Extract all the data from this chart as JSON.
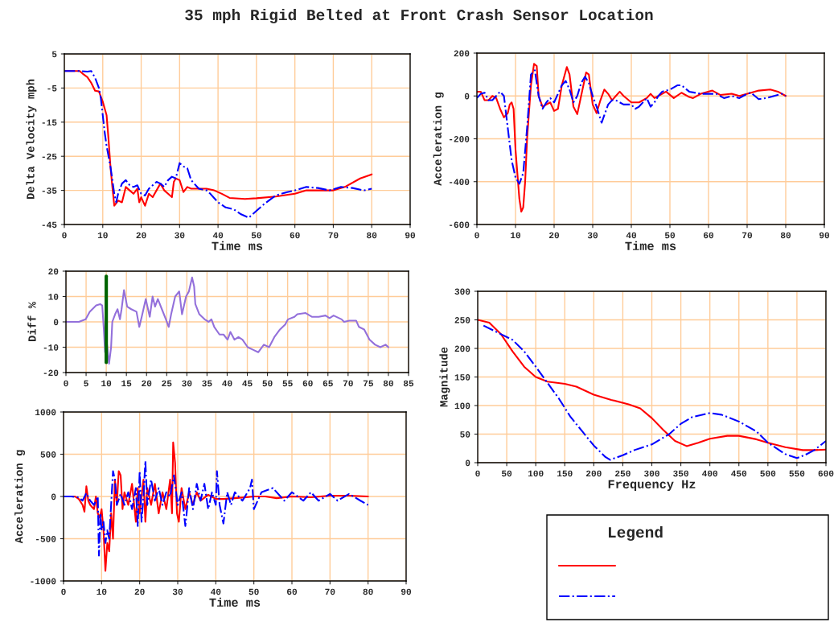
{
  "chart_data": [
    {
      "type": "line",
      "title": "35 mph Rigid Belted at Front Crash Sensor Location",
      "xlabel": "Time ms",
      "ylabel": "Delta Velocity mph",
      "xlim": [
        0,
        90
      ],
      "xticks": [
        0,
        10,
        20,
        30,
        40,
        50,
        60,
        70,
        80,
        90
      ],
      "ylim": [
        -45,
        5
      ],
      "yticks": [
        -45,
        -35,
        -25,
        -15,
        -5,
        5
      ],
      "grid": true,
      "series": [
        {
          "color": "#ff0000",
          "line_style": "solid",
          "x": [
            0,
            4,
            5,
            6,
            7,
            8,
            9,
            10,
            11,
            11.5,
            12,
            12.5,
            13,
            14,
            15,
            16,
            17,
            18,
            19,
            19.5,
            20,
            21,
            22,
            23,
            25,
            26,
            27,
            28,
            28.5,
            29,
            30,
            31,
            32,
            33,
            35,
            37,
            39,
            41,
            43,
            47,
            50,
            55,
            60,
            63,
            70,
            73,
            77,
            80
          ],
          "values": [
            0,
            0,
            -1,
            -1.8,
            -3.5,
            -5.8,
            -6,
            -9,
            -13,
            -20,
            -28,
            -34,
            -39.5,
            -38,
            -38.5,
            -34,
            -35,
            -36,
            -34.5,
            -38.5,
            -37,
            -39.5,
            -36,
            -37,
            -33,
            -35,
            -36,
            -37,
            -32.5,
            -31.5,
            -32,
            -35.5,
            -34,
            -34.5,
            -34.5,
            -34.5,
            -35,
            -36,
            -37.2,
            -37.5,
            -37.3,
            -36.8,
            -36,
            -35,
            -35,
            -34,
            -31.5,
            -30.3
          ]
        },
        {
          "color": "#0000ff",
          "line_style": "dashdot",
          "x": [
            0,
            4,
            6,
            7,
            8,
            9,
            9.5,
            10,
            10.5,
            11,
            12,
            13,
            13.5,
            14,
            15,
            16,
            17,
            18,
            19,
            20,
            21,
            22,
            24,
            25,
            26,
            27,
            28,
            29,
            30,
            31,
            32,
            33,
            35,
            37,
            38,
            40,
            42,
            44,
            46,
            48,
            50,
            52,
            55,
            58,
            60,
            63,
            66,
            69,
            72,
            75,
            78,
            80
          ],
          "values": [
            0,
            0,
            -0.2,
            0,
            -2,
            -5,
            -8,
            -13,
            -18,
            -22,
            -28,
            -36,
            -38.5,
            -36,
            -33,
            -32,
            -33.5,
            -34,
            -33.5,
            -36,
            -36.5,
            -34.5,
            -32.5,
            -33,
            -34,
            -32,
            -31,
            -31.5,
            -27,
            -28,
            -28.5,
            -32,
            -34.5,
            -35,
            -36,
            -38.5,
            -40,
            -40.5,
            -42,
            -43,
            -41,
            -39,
            -36.5,
            -35.5,
            -35,
            -34,
            -34.3,
            -35,
            -34,
            -34.3,
            -35,
            -34.5
          ]
        }
      ]
    },
    {
      "type": "line",
      "xlabel": "Time ms",
      "ylabel": "Acceleration g",
      "xlim": [
        0,
        90
      ],
      "xticks": [
        0,
        10,
        20,
        30,
        40,
        50,
        60,
        70,
        80,
        90
      ],
      "ylim": [
        -600,
        200
      ],
      "yticks": [
        -600,
        -400,
        -200,
        0,
        200
      ],
      "grid": true,
      "series": [
        {
          "color": "#ff0000",
          "line_style": "solid",
          "x": [
            0,
            1,
            2,
            3,
            4,
            5,
            6,
            7,
            8,
            8.5,
            9,
            9.5,
            10,
            11,
            11.5,
            12,
            12.5,
            13,
            14,
            14.8,
            15.5,
            16,
            17,
            18,
            19,
            20,
            21,
            22,
            23.3,
            24,
            25,
            26,
            27,
            28.3,
            29,
            30,
            31,
            32,
            33,
            34,
            35,
            36,
            37,
            38,
            40,
            42,
            44,
            45,
            46,
            48,
            49,
            51,
            53,
            55,
            56,
            58,
            61,
            63,
            66,
            68,
            71,
            73,
            76,
            78,
            80
          ],
          "values": [
            20,
            20,
            -20,
            -20,
            0,
            -10,
            -60,
            -100,
            -80,
            -40,
            -30,
            -60,
            -250,
            -480,
            -540,
            -520,
            -400,
            -200,
            50,
            150,
            140,
            0,
            -50,
            -40,
            -30,
            -70,
            -60,
            50,
            135,
            100,
            -50,
            -85,
            0,
            110,
            100,
            -40,
            -80,
            -20,
            30,
            10,
            -20,
            0,
            20,
            0,
            -30,
            -30,
            -10,
            10,
            -10,
            10,
            20,
            -10,
            15,
            -5,
            -10,
            10,
            25,
            5,
            10,
            0,
            15,
            25,
            30,
            20,
            0
          ]
        },
        {
          "color": "#0000ff",
          "line_style": "dashdot",
          "x": [
            0,
            1,
            2,
            3,
            4,
            5,
            6,
            7,
            8,
            9,
            10,
            11,
            12,
            13,
            14,
            15,
            16,
            17,
            18,
            19,
            20,
            22,
            23,
            24,
            25,
            26,
            27,
            28,
            29,
            30,
            31,
            32.3,
            33,
            34,
            35,
            36,
            38,
            40,
            41,
            42,
            44,
            45,
            46,
            47,
            48,
            50,
            52,
            53,
            55,
            58,
            60,
            62,
            64,
            66,
            68,
            70,
            71,
            73,
            75,
            77,
            79,
            80
          ],
          "values": [
            -10,
            10,
            15,
            -20,
            -20,
            0,
            20,
            0,
            -150,
            -300,
            -380,
            -410,
            -360,
            -150,
            100,
            120,
            0,
            -60,
            -30,
            -10,
            -30,
            50,
            70,
            30,
            -30,
            0,
            60,
            90,
            60,
            0,
            -50,
            -125,
            -90,
            -40,
            -20,
            -20,
            -40,
            -40,
            -60,
            -50,
            -10,
            -50,
            -30,
            0,
            20,
            30,
            50,
            50,
            20,
            10,
            10,
            10,
            -10,
            0,
            -10,
            10,
            15,
            -15,
            -10,
            0,
            10,
            0
          ]
        }
      ]
    },
    {
      "type": "line",
      "ylabel": "Diff %",
      "xlim": [
        0,
        85
      ],
      "xticks": [
        0,
        5,
        10,
        15,
        20,
        25,
        30,
        35,
        40,
        45,
        50,
        55,
        60,
        65,
        70,
        75,
        80,
        85
      ],
      "ylim": [
        -20,
        20
      ],
      "yticks": [
        -20,
        -10,
        0,
        10,
        20
      ],
      "grid": true,
      "series": [
        {
          "color": "#9370db",
          "line_style": "solid",
          "x": [
            0,
            3.2,
            4.9,
            5.9,
            7.5,
            8.5,
            9.0,
            9.4,
            9.7,
            10.2,
            10.7,
            11.2,
            11.5,
            12.2,
            12.8,
            13.4,
            13.8,
            14.4,
            15.2,
            16.2,
            17.5,
            18.2,
            18.8,
            19.8,
            20.8,
            21.5,
            22.1,
            22.8,
            23.8,
            24.8,
            25.5,
            26.1,
            27.1,
            28.1,
            28.8,
            29.8,
            30.5,
            31.3,
            31.8,
            32.1,
            33.1,
            34.4,
            35.4,
            36.1,
            36.8,
            38.1,
            39.1,
            40.1,
            40.8,
            41.8,
            42.8,
            43.8,
            45.1,
            46.4,
            47.7,
            49.1,
            50.4,
            51.7,
            53.1,
            54.4,
            55.1,
            56.7,
            57.4,
            59.4,
            61.0,
            62.7,
            64.4,
            65.4,
            66.4,
            68.4,
            69.0,
            70.3,
            72.0,
            72.7,
            74.0,
            75.3,
            76.7,
            78.0,
            79.3,
            80.0
          ],
          "values": [
            0,
            0,
            1,
            4,
            6.5,
            7,
            6.5,
            -3,
            -12,
            -9,
            -16.5,
            -10,
            0,
            3,
            5,
            1,
            5,
            12.5,
            6,
            5,
            4,
            -2,
            2,
            9,
            2,
            10,
            6,
            9,
            5,
            1,
            -2,
            3,
            10,
            12,
            3,
            10,
            12,
            17.5,
            14,
            7,
            3,
            1,
            0,
            1,
            -2,
            -5,
            -5,
            -7,
            -4,
            -7,
            -6,
            -7,
            -10,
            -11,
            -12,
            -9,
            -10,
            -6,
            -3,
            -1,
            1,
            2,
            3,
            3.5,
            2,
            2,
            2.5,
            1.5,
            2.5,
            1,
            0,
            0.5,
            0.5,
            -2,
            -3,
            -7,
            -9,
            -10,
            -9,
            -10
          ]
        },
        {
          "color": "#006400",
          "line_style": "solid",
          "x": [
            10,
            10
          ],
          "values": [
            -16,
            18
          ]
        }
      ]
    },
    {
      "type": "line",
      "xlabel": "Time ms",
      "ylabel": "Acceleration g",
      "xlim": [
        0,
        90
      ],
      "xticks": [
        0,
        10,
        20,
        30,
        40,
        50,
        60,
        70,
        80,
        90
      ],
      "ylim": [
        -1000,
        1000
      ],
      "yticks": [
        -1000,
        -500,
        0,
        500,
        1000
      ],
      "grid": true,
      "series": [
        {
          "color": "#ff0000",
          "line_style": "solid",
          "x": [
            0,
            3,
            4,
            5,
            5.5,
            6,
            6.5,
            7,
            8,
            8.5,
            9,
            9.5,
            10,
            10.5,
            11,
            11.5,
            12,
            12.5,
            13,
            13.5,
            14,
            14.5,
            15,
            15.5,
            16,
            17,
            18,
            19,
            19.5,
            20,
            21,
            21.5,
            22,
            23,
            24,
            25,
            26,
            27,
            28,
            28.5,
            28.8,
            29.3,
            29.8,
            30.3,
            31,
            32,
            33,
            34,
            35,
            36,
            38,
            40,
            42,
            45,
            48,
            50,
            53,
            56,
            60,
            65,
            70,
            75,
            80
          ],
          "values": [
            0,
            0,
            -30,
            -100,
            -180,
            120,
            -50,
            -100,
            -150,
            0,
            -200,
            -250,
            -150,
            -400,
            -880,
            -550,
            -650,
            -200,
            -500,
            200,
            -100,
            300,
            250,
            -150,
            50,
            -100,
            150,
            -300,
            100,
            -200,
            200,
            -300,
            100,
            -100,
            150,
            -200,
            50,
            -150,
            200,
            -200,
            640,
            400,
            -200,
            -300,
            100,
            -150,
            50,
            -100,
            50,
            -50,
            20,
            -30,
            -30,
            -20,
            -10,
            0,
            0,
            -20,
            0,
            -10,
            10,
            10,
            0
          ]
        },
        {
          "color": "#0000ff",
          "line_style": "dashdot",
          "x": [
            0,
            2,
            4,
            5,
            6,
            7,
            8,
            9,
            9.3,
            9.7,
            10,
            10.5,
            11,
            11.5,
            12,
            12.5,
            13,
            13.5,
            14,
            15,
            16,
            17,
            18,
            19,
            19.5,
            20,
            20.5,
            21,
            21.5,
            22,
            23,
            24,
            25,
            26,
            27,
            28,
            29,
            30,
            31,
            32,
            33,
            34,
            35,
            36,
            37,
            38,
            39,
            40,
            40.3,
            41,
            42,
            43,
            44,
            45,
            47,
            49,
            49.5,
            50,
            52,
            55,
            58,
            60,
            63,
            65,
            67,
            70,
            72,
            75,
            78,
            80
          ],
          "values": [
            0,
            0,
            -10,
            -50,
            40,
            -50,
            -100,
            0,
            -700,
            -200,
            -400,
            -300,
            -550,
            -400,
            -500,
            -100,
            300,
            200,
            -100,
            30,
            -100,
            50,
            -150,
            100,
            -350,
            300,
            -300,
            0,
            420,
            -100,
            200,
            -50,
            100,
            -100,
            50,
            0,
            250,
            -100,
            50,
            -350,
            100,
            -150,
            150,
            -50,
            150,
            -150,
            50,
            -100,
            300,
            -100,
            -320,
            50,
            -100,
            50,
            -50,
            100,
            200,
            -150,
            50,
            100,
            -50,
            50,
            -50,
            50,
            -50,
            30,
            -50,
            30,
            -50,
            -100
          ]
        }
      ]
    },
    {
      "type": "line",
      "xlabel": "Frequency Hz",
      "ylabel": "Magnitude",
      "xlim": [
        0,
        600
      ],
      "xticks": [
        0,
        50,
        100,
        150,
        200,
        250,
        300,
        350,
        400,
        450,
        500,
        550,
        600
      ],
      "ylim": [
        0,
        300
      ],
      "yticks": [
        0,
        50,
        100,
        150,
        200,
        250,
        300
      ],
      "grid": true,
      "annotations": [
        "Legend"
      ],
      "series": [
        {
          "color": "#ff0000",
          "line_style": "solid",
          "x": [
            0,
            20,
            40,
            60,
            80,
            100,
            120,
            150,
            170,
            200,
            230,
            260,
            280,
            300,
            320,
            340,
            360,
            380,
            400,
            430,
            450,
            480,
            500,
            530,
            560,
            580,
            600
          ],
          "values": [
            250,
            245,
            225,
            195,
            168,
            150,
            142,
            138,
            133,
            119,
            110,
            102,
            95,
            78,
            57,
            38,
            29,
            35,
            42,
            47,
            47,
            41,
            35,
            27,
            22,
            22,
            23
          ]
        },
        {
          "color": "#0000ff",
          "line_style": "dashdot",
          "x": [
            10,
            30,
            60,
            80,
            100,
            120,
            140,
            160,
            180,
            200,
            220,
            228,
            250,
            270,
            300,
            330,
            350,
            370,
            400,
            420,
            450,
            480,
            500,
            530,
            550,
            565,
            580,
            600
          ],
          "values": [
            240,
            230,
            215,
            195,
            168,
            140,
            112,
            80,
            55,
            30,
            10,
            5,
            13,
            22,
            32,
            50,
            68,
            80,
            87,
            84,
            72,
            55,
            35,
            15,
            8,
            14,
            22,
            38
          ]
        }
      ]
    }
  ]
}
